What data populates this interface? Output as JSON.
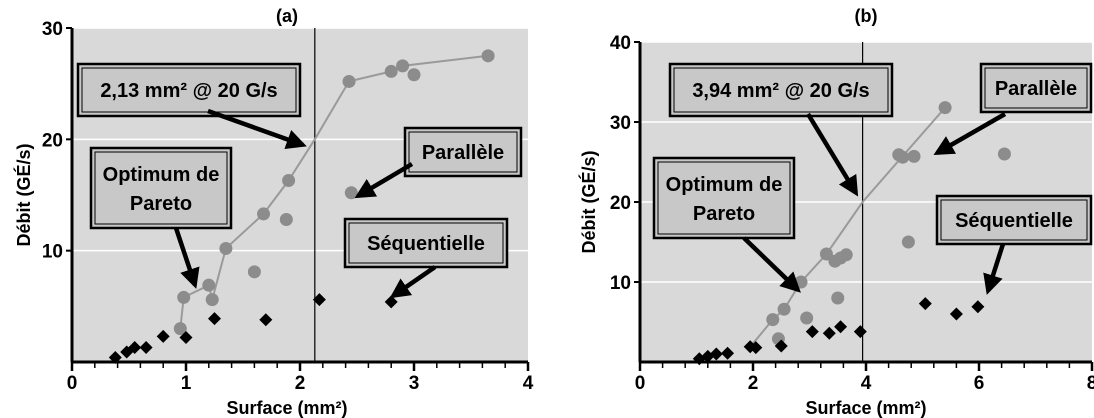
{
  "chart_data": [
    {
      "type": "scatter",
      "title": "(a)",
      "xlabel": "Surface (mm²)",
      "ylabel": "Débit (GÉ/s)",
      "xlim": [
        0,
        4
      ],
      "ylim": [
        0,
        30
      ],
      "xticks": [
        "0",
        "1",
        "2",
        "3",
        "4"
      ],
      "yticks": [
        "10",
        "20",
        "30"
      ],
      "ytick_values": [
        10,
        20,
        30
      ],
      "grid": true,
      "background": "#d9d9d9",
      "vline": {
        "x": 2.13,
        "label": "2,13 mm² @ 20 G/s"
      },
      "series": [
        {
          "name": "Parallèle",
          "marker": "circle",
          "color": "#8c8c8c",
          "x": [
            0.95,
            0.98,
            1.2,
            1.23,
            1.35,
            1.6,
            1.68,
            1.88,
            1.9,
            2.43,
            2.45,
            2.8,
            2.9,
            3.0,
            3.65
          ],
          "y": [
            3.0,
            5.8,
            6.9,
            5.6,
            10.2,
            8.1,
            13.3,
            12.8,
            16.3,
            25.2,
            15.2,
            26.1,
            26.6,
            25.8,
            27.5
          ]
        },
        {
          "name": "Séquentielle",
          "marker": "diamond",
          "color": "#000000",
          "x": [
            0.38,
            0.48,
            0.55,
            0.65,
            0.8,
            1.0,
            1.25,
            1.7,
            2.17,
            2.8
          ],
          "y": [
            0.4,
            0.9,
            1.3,
            1.3,
            2.3,
            2.2,
            3.9,
            3.8,
            5.6,
            5.4
          ]
        },
        {
          "name": "Optimum de Pareto",
          "marker": "line",
          "color": "#9a9a9a",
          "x": [
            0.95,
            0.98,
            1.2,
            1.23,
            1.35,
            1.68,
            1.9,
            2.13,
            2.43,
            2.8,
            2.9,
            3.65
          ],
          "y": [
            3.0,
            5.8,
            6.9,
            5.6,
            10.2,
            13.3,
            16.3,
            20.0,
            25.2,
            26.1,
            26.6,
            27.5
          ]
        }
      ],
      "annotations": [
        {
          "text": "2,13 mm² @ 20 G/s"
        },
        {
          "text": "Optimum de Pareto"
        },
        {
          "text": "Parallèle"
        },
        {
          "text": "Séquentielle"
        }
      ]
    },
    {
      "type": "scatter",
      "title": "(b)",
      "xlabel": "Surface (mm²)",
      "ylabel": "Débit (GÉ/s)",
      "xlim": [
        0,
        8
      ],
      "ylim": [
        0,
        40
      ],
      "xticks": [
        "0",
        "2",
        "4",
        "6",
        "8"
      ],
      "yticks": [
        "10",
        "20",
        "30",
        "40"
      ],
      "ytick_values": [
        10,
        20,
        30,
        40
      ],
      "grid": true,
      "background": "#d9d9d9",
      "vline": {
        "x": 3.94,
        "label": "3,94 mm² @ 20 G/s"
      },
      "series": [
        {
          "name": "Parallèle",
          "marker": "circle",
          "color": "#8c8c8c",
          "x": [
            2.35,
            2.45,
            2.55,
            2.85,
            2.95,
            3.3,
            3.45,
            3.5,
            3.55,
            3.65,
            4.58,
            4.65,
            4.75,
            4.85,
            5.4,
            6.45
          ],
          "y": [
            5.3,
            2.9,
            6.6,
            10.0,
            5.5,
            13.5,
            12.6,
            8.0,
            13.0,
            13.4,
            25.9,
            25.6,
            15.0,
            25.7,
            31.8,
            26.0
          ]
        },
        {
          "name": "Séquentielle",
          "marker": "diamond",
          "color": "#000000",
          "x": [
            1.05,
            1.2,
            1.35,
            1.55,
            1.95,
            2.05,
            2.5,
            3.05,
            3.35,
            3.55,
            3.9,
            5.05,
            5.6,
            5.98
          ],
          "y": [
            0.4,
            0.7,
            1.0,
            1.1,
            1.9,
            1.8,
            2.0,
            3.8,
            3.6,
            4.4,
            3.8,
            7.3,
            6.0,
            6.9
          ]
        },
        {
          "name": "Optimum de Pareto",
          "marker": "line",
          "color": "#9a9a9a",
          "x": [
            1.95,
            2.35,
            2.55,
            2.85,
            3.3,
            3.94,
            5.4
          ],
          "y": [
            1.9,
            5.3,
            6.6,
            10.0,
            13.5,
            20.0,
            31.8
          ]
        }
      ],
      "annotations": [
        {
          "text": "3,94 mm² @ 20 G/s"
        },
        {
          "text": "Optimum de Pareto"
        },
        {
          "text": "Parallèle"
        },
        {
          "text": "Séquentielle"
        }
      ]
    }
  ]
}
